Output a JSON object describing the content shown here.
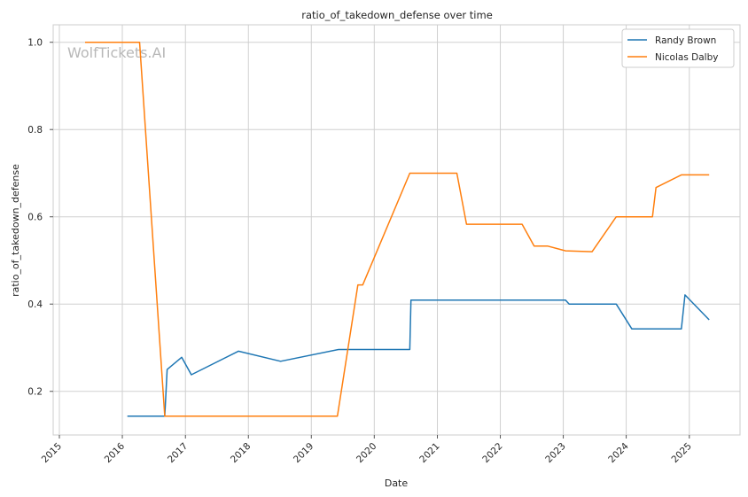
{
  "chart_data": {
    "type": "line",
    "title": "ratio_of_takedown_defense over time",
    "xlabel": "Date",
    "ylabel": "ratio_of_takedown_defense",
    "xlim": [
      "2014-11-26",
      "2025-10-22"
    ],
    "ylim": [
      0.1,
      1.04
    ],
    "grid": true,
    "legend_position": "top-right",
    "watermark": "WolfTickets.AI",
    "x_ticks": [
      "2015",
      "2016",
      "2017",
      "2018",
      "2019",
      "2020",
      "2021",
      "2022",
      "2023",
      "2024",
      "2025"
    ],
    "y_ticks": [
      "0.2",
      "0.4",
      "0.6",
      "0.8",
      "1.0"
    ],
    "series": [
      {
        "name": "Randy Brown",
        "color": "#1f77b4",
        "points": [
          [
            "2016-01-30",
            0.143
          ],
          [
            "2016-09-03",
            0.143
          ],
          [
            "2016-09-17",
            0.25
          ],
          [
            "2016-12-10",
            0.278
          ],
          [
            "2017-02-04",
            0.238
          ],
          [
            "2017-11-04",
            0.292
          ],
          [
            "2018-07-07",
            0.269
          ],
          [
            "2019-06-08",
            0.296
          ],
          [
            "2020-07-25",
            0.296
          ],
          [
            "2020-08-01",
            0.409
          ],
          [
            "2023-01-14",
            0.409
          ],
          [
            "2023-02-04",
            0.4
          ],
          [
            "2023-11-04",
            0.4
          ],
          [
            "2024-02-03",
            0.343
          ],
          [
            "2024-11-16",
            0.343
          ],
          [
            "2024-12-07",
            0.421
          ],
          [
            "2025-04-26",
            0.364
          ]
        ]
      },
      {
        "name": "Nicolas Dalby",
        "color": "#ff7f0e",
        "points": [
          [
            "2015-05-30",
            1.0
          ],
          [
            "2016-04-10",
            1.0
          ],
          [
            "2016-09-03",
            0.143
          ],
          [
            "2019-06-01",
            0.143
          ],
          [
            "2019-09-28",
            0.444
          ],
          [
            "2019-10-26",
            0.444
          ],
          [
            "2020-07-25",
            0.7
          ],
          [
            "2021-04-24",
            0.7
          ],
          [
            "2021-06-19",
            0.583
          ],
          [
            "2022-05-07",
            0.583
          ],
          [
            "2022-07-16",
            0.533
          ],
          [
            "2022-10-01",
            0.533
          ],
          [
            "2023-01-14",
            0.522
          ],
          [
            "2023-06-17",
            0.52
          ],
          [
            "2023-11-04",
            0.6
          ],
          [
            "2024-06-01",
            0.6
          ],
          [
            "2024-06-22",
            0.667
          ],
          [
            "2024-11-16",
            0.696
          ],
          [
            "2025-04-26",
            0.696
          ]
        ]
      }
    ]
  }
}
